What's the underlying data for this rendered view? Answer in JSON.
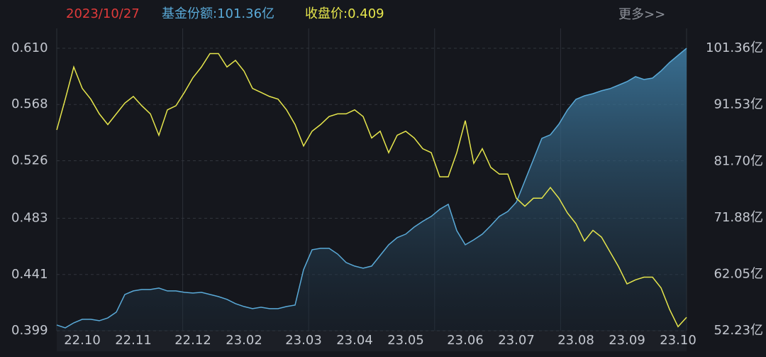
{
  "header": {
    "date": "2023/10/27",
    "share": "基金份额:101.36亿",
    "close": "收盘价:0.409",
    "more": "更多>>"
  },
  "chart_data": {
    "type": "line",
    "categories": [
      null,
      null,
      null,
      "22.10",
      null,
      null,
      null,
      null,
      null,
      "22.11",
      null,
      null,
      null,
      null,
      null,
      null,
      "22.12",
      null,
      null,
      null,
      null,
      null,
      "23.02",
      null,
      null,
      null,
      null,
      null,
      null,
      "23.03",
      null,
      null,
      null,
      null,
      null,
      "23.04",
      null,
      null,
      null,
      null,
      null,
      "23.05",
      null,
      null,
      null,
      null,
      null,
      null,
      "23.06",
      null,
      null,
      null,
      null,
      null,
      "23.07",
      null,
      null,
      null,
      null,
      null,
      null,
      "23.08",
      null,
      null,
      null,
      null,
      null,
      "23.09",
      null,
      null,
      null,
      null,
      null,
      "23.10",
      null
    ],
    "series": [
      {
        "color": "#e6e64c",
        "values": [
          0.549,
          0.572,
          0.596,
          0.58,
          0.572,
          0.561,
          0.553,
          0.561,
          0.569,
          0.574,
          0.567,
          0.561,
          0.545,
          0.564,
          0.567,
          0.577,
          0.588,
          0.596,
          0.606,
          0.606,
          0.596,
          0.601,
          0.593,
          0.58,
          0.577,
          0.574,
          0.572,
          0.564,
          0.553,
          0.537,
          0.548,
          0.553,
          0.559,
          0.561,
          0.561,
          0.564,
          0.559,
          0.543,
          0.548,
          0.532,
          0.545,
          0.548,
          0.543,
          0.535,
          0.532,
          0.514,
          0.514,
          0.532,
          0.556,
          0.524,
          0.535,
          0.521,
          0.516,
          0.516,
          0.498,
          0.492,
          0.498,
          0.498,
          0.506,
          0.498,
          0.487,
          0.479,
          0.466,
          0.474,
          0.469,
          0.458,
          0.447,
          0.434,
          0.437,
          0.439,
          0.439,
          0.431,
          0.415,
          0.402,
          0.409
        ]
      },
      {
        "color": "#5aaad8",
        "axis": "y2",
        "fill": true,
        "values": [
          53.23,
          52.74,
          53.6,
          54.22,
          54.22,
          53.97,
          54.47,
          55.46,
          58.54,
          59.16,
          59.4,
          59.4,
          59.65,
          59.16,
          59.16,
          58.91,
          58.79,
          58.91,
          58.54,
          58.17,
          57.68,
          56.94,
          56.44,
          56.07,
          56.32,
          56.07,
          56.07,
          56.44,
          56.69,
          62.86,
          66.31,
          66.56,
          66.56,
          65.57,
          64.09,
          63.48,
          63.1,
          63.48,
          65.33,
          67.18,
          68.42,
          69.03,
          70.27,
          71.25,
          72.12,
          73.35,
          74.21,
          69.65,
          67.18,
          68.04,
          69.03,
          70.51,
          72.12,
          72.98,
          74.58,
          78.29,
          81.99,
          85.69,
          86.31,
          88.16,
          90.62,
          92.47,
          93.09,
          93.46,
          93.96,
          94.33,
          94.94,
          95.56,
          96.42,
          95.93,
          96.18,
          97.41,
          98.89,
          100.13,
          101.36
        ]
      }
    ],
    "ylim": [
      0.399,
      0.61
    ],
    "yticks": [
      0.399,
      0.441,
      0.483,
      0.526,
      0.568,
      {
        "value": 0.61,
        "label": "0.610"
      }
    ],
    "y2lim": [
      52.23,
      101.36
    ],
    "y2ticks": [
      {
        "value": 52.23,
        "label": "52.23亿"
      },
      {
        "value": 62.05,
        "label": "62.05亿"
      },
      {
        "value": 71.88,
        "label": "71.88亿"
      },
      {
        "value": 81.7,
        "label": "81.70亿"
      },
      {
        "value": 91.53,
        "label": "91.53亿"
      },
      {
        "value": 101.36,
        "label": "101.36亿"
      }
    ],
    "grid": true
  }
}
